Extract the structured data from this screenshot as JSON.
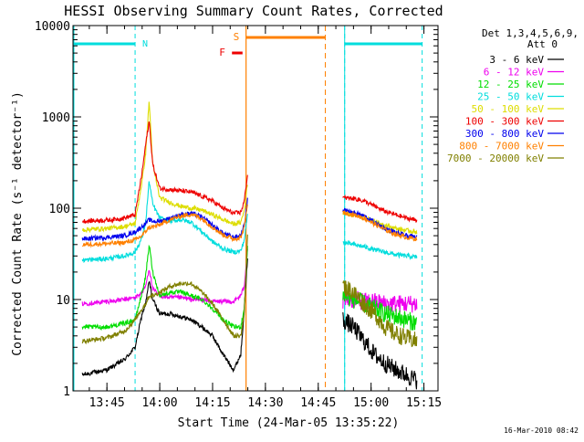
{
  "chart_data": {
    "type": "line",
    "title": "HESSI Observing Summary Count Rates, Corrected",
    "xlabel": "Start Time (24-Mar-05 13:35:22)",
    "ylabel": "Corrected Count Rate (s⁻¹ detector⁻¹)",
    "y_scale": "log",
    "ylim": [
      1,
      10000
    ],
    "xlim": [
      "13:35:22",
      "15:19:00"
    ],
    "x_ticks": [
      "13:45",
      "14:00",
      "14:15",
      "14:30",
      "14:45",
      "15:00",
      "15:15"
    ],
    "y_ticks": [
      "1",
      "10",
      "100",
      "1000",
      "10000"
    ],
    "grid": false,
    "legend_position": "top-right (outside plot)",
    "legend_title": [
      "Det 1,3,4,5,6,9,",
      "Att 0"
    ],
    "timestamp": "16-Mar-2010 08:42",
    "markers": [
      {
        "label": "N",
        "type": "night",
        "start": "13:35:22",
        "end": "13:53:00",
        "color": "#00dddd"
      },
      {
        "label": "N",
        "type": "night",
        "start": "14:52:30",
        "end": "15:14:30",
        "color": "#00dddd"
      },
      {
        "label": "S",
        "type": "SAA",
        "start": "14:24:30",
        "end": "14:47:00",
        "color": "#ff8000"
      },
      {
        "label": "F",
        "type": "flare",
        "start": "14:20:30",
        "end": "14:23:30",
        "color": "#ee0000"
      }
    ],
    "series": [
      {
        "name": "3 - 6 keV",
        "color": "#000000",
        "x": [
          "13:38",
          "13:45",
          "13:50",
          "13:53",
          "13:55",
          "13:56",
          "13:57",
          "13:58",
          "14:00",
          "14:03",
          "14:06",
          "14:09",
          "14:12",
          "14:15",
          "14:18",
          "14:21",
          "14:23",
          "14:24",
          "14:25"
        ],
        "y": [
          1.5,
          1.7,
          2.2,
          3.0,
          7,
          9,
          16,
          10,
          7,
          7,
          6.5,
          6,
          5,
          4,
          2.5,
          1.7,
          2.5,
          8,
          30
        ]
      },
      {
        "name": "6 - 12 keV",
        "color": "#ee00ee",
        "x": [
          "13:38",
          "13:45",
          "13:50",
          "13:53",
          "13:55",
          "13:56",
          "13:57",
          "13:58",
          "14:00",
          "14:03",
          "14:06",
          "14:09",
          "14:12",
          "14:15",
          "14:18",
          "14:21",
          "14:23",
          "14:24",
          "14:25"
        ],
        "y": [
          9,
          9.5,
          10,
          10.5,
          12,
          14,
          22,
          13,
          11,
          10.5,
          10.5,
          10,
          10,
          9.5,
          9.5,
          9.5,
          11,
          14,
          40
        ]
      },
      {
        "name": "12 - 25 keV",
        "color": "#00dd00",
        "x": [
          "13:38",
          "13:45",
          "13:50",
          "13:53",
          "13:55",
          "13:56",
          "13:57",
          "13:58",
          "14:00",
          "14:03",
          "14:06",
          "14:09",
          "14:12",
          "14:15",
          "14:18",
          "14:21",
          "14:23",
          "14:24",
          "14:25"
        ],
        "y": [
          5,
          5,
          5.5,
          6,
          12,
          18,
          40,
          20,
          11,
          12,
          12,
          11,
          10,
          8,
          6,
          5,
          5,
          8,
          45
        ]
      },
      {
        "name": "25 - 50 keV",
        "color": "#00dddd",
        "x": [
          "13:38",
          "13:45",
          "13:50",
          "13:53",
          "13:55",
          "13:56",
          "13:57",
          "13:58",
          "14:00",
          "14:03",
          "14:06",
          "14:09",
          "14:12",
          "14:15",
          "14:18",
          "14:21",
          "14:23",
          "14:24",
          "14:25"
        ],
        "y": [
          27,
          28,
          30,
          33,
          48,
          70,
          200,
          110,
          78,
          72,
          75,
          70,
          55,
          43,
          36,
          33,
          34,
          45,
          90
        ]
      },
      {
        "name": "50 - 100 keV",
        "color": "#dddd00",
        "x": [
          "13:38",
          "13:45",
          "13:50",
          "13:53",
          "13:55",
          "13:56",
          "13:57",
          "13:58",
          "14:00",
          "14:03",
          "14:06",
          "14:09",
          "14:12",
          "14:15",
          "14:18",
          "14:21",
          "14:23",
          "14:24",
          "14:25"
        ],
        "y": [
          58,
          60,
          63,
          68,
          200,
          400,
          1500,
          300,
          130,
          115,
          105,
          100,
          95,
          85,
          75,
          67,
          70,
          95,
          200
        ]
      },
      {
        "name": "100 - 300 keV",
        "color": "#ee0000",
        "x": [
          "13:38",
          "13:45",
          "13:50",
          "13:53",
          "13:55",
          "13:56",
          "13:57",
          "13:58",
          "14:00",
          "14:03",
          "14:06",
          "14:09",
          "14:12",
          "14:15",
          "14:18",
          "14:21",
          "14:23",
          "14:24",
          "14:25"
        ],
        "y": [
          72,
          74,
          78,
          85,
          250,
          500,
          900,
          300,
          165,
          160,
          155,
          150,
          135,
          120,
          100,
          88,
          90,
          120,
          250
        ]
      },
      {
        "name": "300 - 800 keV",
        "color": "#0000ee",
        "x": [
          "13:38",
          "13:45",
          "13:50",
          "13:53",
          "13:55",
          "13:56",
          "13:57",
          "13:58",
          "14:00",
          "14:03",
          "14:06",
          "14:09",
          "14:12",
          "14:15",
          "14:18",
          "14:21",
          "14:23",
          "14:24",
          "14:25"
        ],
        "y": [
          46,
          48,
          50,
          55,
          63,
          68,
          75,
          72,
          72,
          78,
          85,
          88,
          80,
          65,
          53,
          48,
          50,
          65,
          130
        ]
      },
      {
        "name": "800 - 7000 keV",
        "color": "#ff8000",
        "x": [
          "13:38",
          "13:45",
          "13:50",
          "13:53",
          "13:55",
          "13:56",
          "13:57",
          "13:58",
          "14:00",
          "14:03",
          "14:06",
          "14:09",
          "14:12",
          "14:15",
          "14:18",
          "14:21",
          "14:23",
          "14:24",
          "14:25"
        ],
        "y": [
          40,
          41,
          42,
          45,
          50,
          56,
          62,
          62,
          66,
          75,
          82,
          86,
          77,
          62,
          51,
          46,
          48,
          62,
          120
        ]
      },
      {
        "name": "7000 - 20000 keV",
        "color": "#808000",
        "x": [
          "13:38",
          "13:45",
          "13:50",
          "13:53",
          "13:55",
          "13:56",
          "13:57",
          "13:58",
          "14:00",
          "14:03",
          "14:06",
          "14:09",
          "14:12",
          "14:15",
          "14:18",
          "14:21",
          "14:23",
          "14:24",
          "14:25"
        ],
        "y": [
          3.5,
          3.8,
          4.5,
          6,
          8,
          9,
          11,
          11,
          12,
          14,
          15,
          15,
          12,
          9,
          6,
          4,
          4,
          7,
          60
        ]
      }
    ],
    "series_after_gap": [
      {
        "name": "3 - 6 keV",
        "x": [
          "14:52",
          "14:55",
          "14:58",
          "15:01",
          "15:04",
          "15:07",
          "15:10",
          "15:13"
        ],
        "y": [
          6,
          5,
          3.5,
          2.5,
          2,
          1.7,
          1.5,
          1.3
        ]
      },
      {
        "name": "6 - 12 keV",
        "x": [
          "14:52",
          "14:55",
          "14:58",
          "15:01",
          "15:04",
          "15:07",
          "15:10",
          "15:13"
        ],
        "y": [
          10,
          10,
          9.5,
          9.5,
          9,
          9,
          9,
          9
        ]
      },
      {
        "name": "12 - 25 keV",
        "x": [
          "14:52",
          "14:55",
          "14:58",
          "15:01",
          "15:04",
          "15:07",
          "15:10",
          "15:13"
        ],
        "y": [
          11,
          10,
          9,
          8,
          7,
          6.5,
          6,
          5.5
        ]
      },
      {
        "name": "25 - 50 keV",
        "x": [
          "14:52",
          "14:55",
          "14:58",
          "15:01",
          "15:04",
          "15:07",
          "15:10",
          "15:13"
        ],
        "y": [
          42,
          40,
          38,
          35,
          33,
          31,
          30,
          29
        ]
      },
      {
        "name": "50 - 100 keV",
        "x": [
          "14:52",
          "14:55",
          "14:58",
          "15:01",
          "15:04",
          "15:07",
          "15:10",
          "15:13"
        ],
        "y": [
          88,
          85,
          80,
          72,
          65,
          60,
          57,
          55
        ]
      },
      {
        "name": "100 - 300 keV",
        "x": [
          "14:52",
          "14:55",
          "14:58",
          "15:01",
          "15:04",
          "15:07",
          "15:10",
          "15:13"
        ],
        "y": [
          130,
          128,
          120,
          105,
          92,
          85,
          78,
          74
        ]
      },
      {
        "name": "300 - 800 keV",
        "x": [
          "14:52",
          "14:55",
          "14:58",
          "15:01",
          "15:04",
          "15:07",
          "15:10",
          "15:13"
        ],
        "y": [
          95,
          90,
          82,
          70,
          60,
          54,
          50,
          48
        ]
      },
      {
        "name": "800 - 7000 keV",
        "x": [
          "14:52",
          "14:55",
          "14:58",
          "15:01",
          "15:04",
          "15:07",
          "15:10",
          "15:13"
        ],
        "y": [
          90,
          85,
          78,
          67,
          58,
          52,
          48,
          46
        ]
      },
      {
        "name": "7000 - 20000 keV",
        "x": [
          "14:52",
          "14:55",
          "14:58",
          "15:01",
          "15:04",
          "15:07",
          "15:10",
          "15:13"
        ],
        "y": [
          14,
          12,
          9,
          7,
          5,
          4.2,
          3.8,
          3.5
        ]
      }
    ]
  }
}
